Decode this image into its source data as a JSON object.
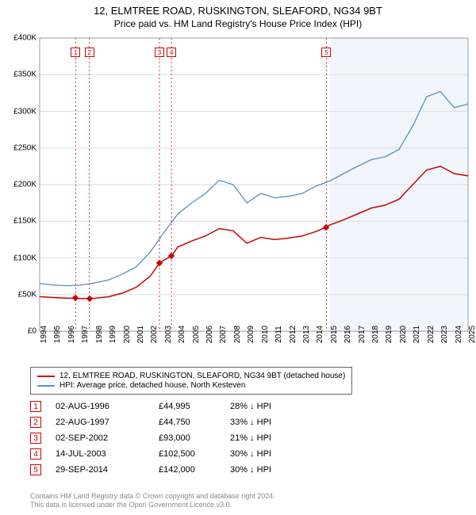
{
  "title": {
    "line1": "12, ELMTREE ROAD, RUSKINGTON, SLEAFORD, NG34 9BT",
    "line2": "Price paid vs. HM Land Registry's House Price Index (HPI)"
  },
  "chart": {
    "type": "line",
    "background_color": "#ffffff",
    "projection_bg": "#f0f6fb",
    "projection_start_year": 2015,
    "grid_color": "#dddddd",
    "axis_color": "#000000",
    "tick_fontsize": 10,
    "x_min": 1994,
    "x_max": 2025,
    "xticks": [
      1994,
      1995,
      1996,
      1997,
      1998,
      1999,
      2000,
      2001,
      2002,
      2003,
      2004,
      2005,
      2006,
      2007,
      2008,
      2009,
      2010,
      2011,
      2012,
      2013,
      2014,
      2015,
      2016,
      2017,
      2018,
      2019,
      2020,
      2021,
      2022,
      2023,
      2024,
      2025
    ],
    "y_min": 0,
    "y_max": 400000,
    "yticks": [
      0,
      50000,
      100000,
      150000,
      200000,
      250000,
      300000,
      350000,
      400000
    ],
    "ytick_labels": [
      "£0",
      "£50K",
      "£100K",
      "£150K",
      "£200K",
      "£250K",
      "£300K",
      "£350K",
      "£400K"
    ],
    "series": [
      {
        "name": "property",
        "color": "#cc0000",
        "width": 1.5,
        "points": [
          [
            1994,
            47000
          ],
          [
            1995,
            46000
          ],
          [
            1996,
            45000
          ],
          [
            1996.6,
            44995
          ],
          [
            1997,
            44500
          ],
          [
            1997.6,
            44750
          ],
          [
            1998,
            45000
          ],
          [
            1999,
            47000
          ],
          [
            2000,
            52000
          ],
          [
            2001,
            60000
          ],
          [
            2002,
            75000
          ],
          [
            2002.67,
            93000
          ],
          [
            2003,
            97000
          ],
          [
            2003.54,
            102500
          ],
          [
            2004,
            115000
          ],
          [
            2005,
            123000
          ],
          [
            2006,
            130000
          ],
          [
            2007,
            140000
          ],
          [
            2008,
            137000
          ],
          [
            2009,
            120000
          ],
          [
            2010,
            128000
          ],
          [
            2011,
            125000
          ],
          [
            2012,
            127000
          ],
          [
            2013,
            130000
          ],
          [
            2014,
            136000
          ],
          [
            2014.75,
            142000
          ],
          [
            2015,
            145000
          ],
          [
            2016,
            152000
          ],
          [
            2017,
            160000
          ],
          [
            2018,
            168000
          ],
          [
            2019,
            172000
          ],
          [
            2020,
            180000
          ],
          [
            2021,
            200000
          ],
          [
            2022,
            220000
          ],
          [
            2023,
            225000
          ],
          [
            2024,
            215000
          ],
          [
            2025,
            212000
          ]
        ]
      },
      {
        "name": "hpi",
        "color": "#5b8fbf",
        "width": 1.3,
        "points": [
          [
            1994,
            65000
          ],
          [
            1995,
            63000
          ],
          [
            1996,
            62000
          ],
          [
            1997,
            63000
          ],
          [
            1998,
            66000
          ],
          [
            1999,
            70000
          ],
          [
            2000,
            78000
          ],
          [
            2001,
            88000
          ],
          [
            2002,
            108000
          ],
          [
            2003,
            135000
          ],
          [
            2004,
            160000
          ],
          [
            2005,
            175000
          ],
          [
            2006,
            188000
          ],
          [
            2007,
            206000
          ],
          [
            2008,
            200000
          ],
          [
            2009,
            175000
          ],
          [
            2010,
            188000
          ],
          [
            2011,
            182000
          ],
          [
            2012,
            184000
          ],
          [
            2013,
            188000
          ],
          [
            2014,
            198000
          ],
          [
            2015,
            205000
          ],
          [
            2016,
            215000
          ],
          [
            2017,
            225000
          ],
          [
            2018,
            234000
          ],
          [
            2019,
            238000
          ],
          [
            2020,
            248000
          ],
          [
            2021,
            280000
          ],
          [
            2022,
            320000
          ],
          [
            2023,
            327000
          ],
          [
            2024,
            305000
          ],
          [
            2025,
            310000
          ]
        ]
      }
    ],
    "sale_markers": [
      {
        "n": "1",
        "year": 1996.6,
        "price": 44995
      },
      {
        "n": "2",
        "year": 1997.6,
        "price": 44750
      },
      {
        "n": "3",
        "year": 2002.67,
        "price": 93000
      },
      {
        "n": "4",
        "year": 2003.54,
        "price": 102500
      },
      {
        "n": "5",
        "year": 2014.75,
        "price": 142000
      }
    ],
    "vline_color": "#cc0000",
    "vline_dash": "2,3"
  },
  "legend": {
    "items": [
      {
        "color": "#cc0000",
        "label": "12, ELMTREE ROAD, RUSKINGTON, SLEAFORD, NG34 9BT (detached house)"
      },
      {
        "color": "#5b8fbf",
        "label": "HPI: Average price, detached house, North Kesteven"
      }
    ]
  },
  "sales": [
    {
      "n": "1",
      "date": "02-AUG-1996",
      "price": "£44,995",
      "diff": "28% ↓ HPI"
    },
    {
      "n": "2",
      "date": "22-AUG-1997",
      "price": "£44,750",
      "diff": "33% ↓ HPI"
    },
    {
      "n": "3",
      "date": "02-SEP-2002",
      "price": "£93,000",
      "diff": "21% ↓ HPI"
    },
    {
      "n": "4",
      "date": "14-JUL-2003",
      "price": "£102,500",
      "diff": "30% ↓ HPI"
    },
    {
      "n": "5",
      "date": "29-SEP-2014",
      "price": "£142,000",
      "diff": "30% ↓ HPI"
    }
  ],
  "footer": {
    "line1": "Contains HM Land Registry data © Crown copyright and database right 2024.",
    "line2": "This data is licensed under the Open Government Licence v3.0."
  }
}
